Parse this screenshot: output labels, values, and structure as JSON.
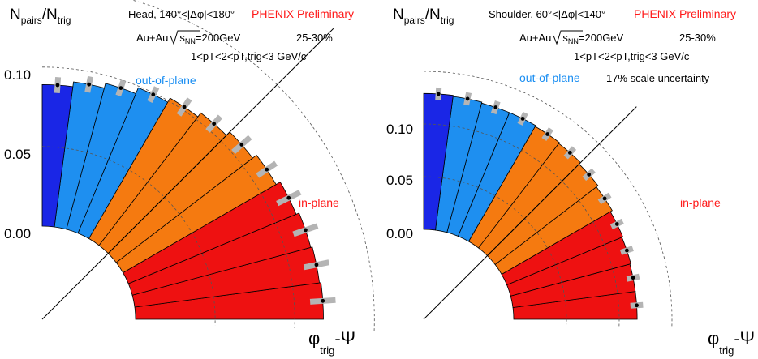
{
  "colors": {
    "dark_blue": "#1a26e6",
    "light_blue": "#1e8ff0",
    "orange": "#f57a10",
    "red": "#ee1111",
    "sys_error": "#b4b4b4",
    "label_red": "#ff1a1a",
    "label_blue": "#1a8ef2"
  },
  "chart_data": [
    {
      "type": "polar-bar",
      "title": "Head, 140°<|Δφ|<180°",
      "ylabel_main": "N",
      "ylabel_sub1": "pairs",
      "ylabel_sep": "/N",
      "ylabel_sub2": "trig",
      "xlabel_main": "φ",
      "xlabel_sub": "trig",
      "xlabel_tail": "-Ψ",
      "preliminary": "PHENIX Preliminary",
      "system_prefix": "Au+Au",
      "system_sqrt": "s",
      "system_sub": "NN",
      "system_energy": "=200GeV",
      "centrality": "25-30%",
      "pt_range": "1<pT<2<pT,trig<3 GeV/c",
      "scale_uncertainty": "",
      "label_out": "out-of-plane",
      "label_in": "in-plane",
      "ticks": [
        0.1,
        0.05,
        0.0
      ],
      "tick_labels": [
        "0.10",
        "0.05",
        "0.00"
      ],
      "r_offset": 0.05,
      "r_max": 0.15,
      "bin_angles_deg": [
        3.75,
        11.25,
        18.75,
        26.25,
        33.75,
        41.25,
        48.75,
        56.25,
        63.75,
        71.25,
        78.75,
        86.25
      ],
      "values": [
        0.068,
        0.067,
        0.066,
        0.064,
        0.061,
        0.058,
        0.055,
        0.052,
        0.049,
        0.045,
        0.042,
        0.039
      ],
      "sys_errors": [
        0.008,
        0.008,
        0.008,
        0.008,
        0.007,
        0.007,
        0.006,
        0.006,
        0.005,
        0.005,
        0.005,
        0.005
      ],
      "bin_colors": [
        "red",
        "red",
        "red",
        "red",
        "orange",
        "orange",
        "orange",
        "orange",
        "light_blue",
        "light_blue",
        "light_blue",
        "dark_blue"
      ]
    },
    {
      "type": "polar-bar",
      "title": "Shoulder, 60°<|Δφ|<140°",
      "ylabel_main": "N",
      "ylabel_sub1": "pairs",
      "ylabel_sep": "/N",
      "ylabel_sub2": "trig",
      "xlabel_main": "φ",
      "xlabel_sub": "trig",
      "xlabel_tail": "-Ψ",
      "preliminary": "PHENIX Preliminary",
      "system_prefix": "Au+Au",
      "system_sqrt": "s",
      "system_sub": "NN",
      "system_energy": "=200GeV",
      "centrality": "25-30%",
      "pt_range": "1<pT<2<pT,trig<3 GeV/c",
      "scale_uncertainty": "17% scale uncertainty",
      "label_out": "out-of-plane",
      "label_in": "in-plane",
      "ticks": [
        0.1,
        0.05,
        0.0
      ],
      "tick_labels": [
        "0.10",
        "0.05",
        "0.00"
      ],
      "r_offset": 0.05,
      "r_max": 0.15,
      "bin_angles_deg": [
        3.75,
        11.25,
        18.75,
        26.25,
        33.75,
        41.25,
        48.75,
        56.25,
        63.75,
        71.25,
        78.75,
        86.25
      ],
      "values": [
        0.067,
        0.067,
        0.068,
        0.069,
        0.071,
        0.073,
        0.075,
        0.076,
        0.077,
        0.077,
        0.078,
        0.079
      ],
      "sys_errors": [
        0.006,
        0.006,
        0.006,
        0.006,
        0.006,
        0.006,
        0.006,
        0.006,
        0.006,
        0.006,
        0.006,
        0.006
      ],
      "bin_colors": [
        "red",
        "red",
        "red",
        "red",
        "orange",
        "orange",
        "orange",
        "orange",
        "light_blue",
        "light_blue",
        "light_blue",
        "dark_blue"
      ]
    }
  ]
}
